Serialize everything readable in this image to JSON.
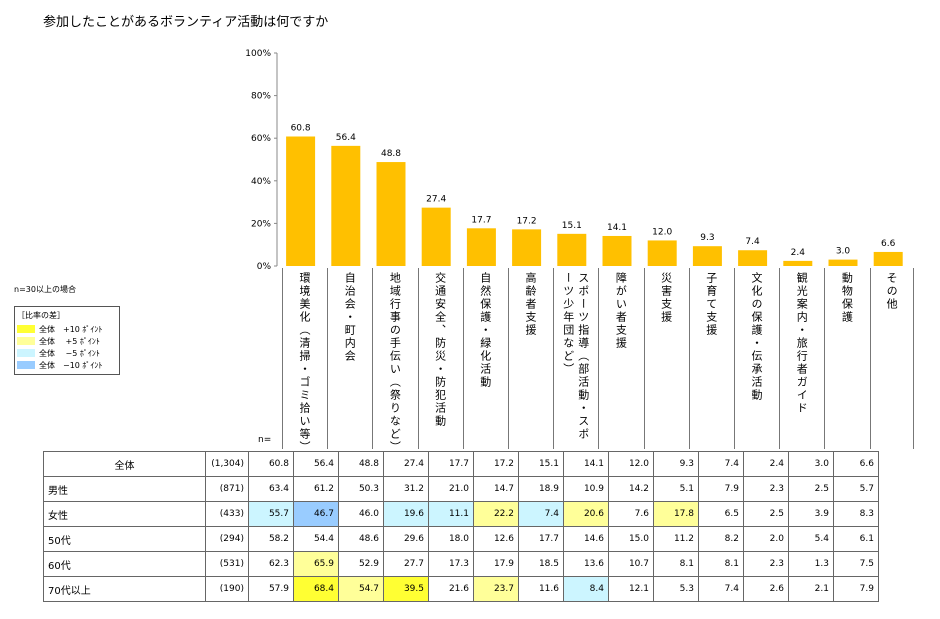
{
  "title": "参加したことがあるボランティア活動は何ですか",
  "colors": {
    "bar": "#FFC000",
    "p10": "#ffff33",
    "p5": "#ffff99",
    "m5": "#ccf5ff",
    "m10": "#99ccff"
  },
  "legend": {
    "note": "n=30以上の場合",
    "heading": "［比率の差］",
    "items": [
      {
        "label": "全体　+10 ﾎﾟｲﾝﾄ",
        "color": "#ffff33"
      },
      {
        "label": "全体　 +5 ﾎﾟｲﾝﾄ",
        "color": "#ffff99"
      },
      {
        "label": "全体　 −5 ﾎﾟｲﾝﾄ",
        "color": "#ccf5ff"
      },
      {
        "label": "全体　−10 ﾎﾟｲﾝﾄ",
        "color": "#99ccff"
      }
    ]
  },
  "n_label": "n=",
  "chart_data": {
    "type": "bar",
    "title": "参加したことがあるボランティア活動は何ですか",
    "categories": [
      "環境美化（清掃・ゴミ拾い等）",
      "自治会・町内会",
      "地域行事の手伝い（祭りなど）",
      "交通安全、防災・防犯活動",
      "自然保護・緑化活動",
      "高齢者支援",
      "スポーツ指導（部活動・スポーツ少年団など）",
      "障がい者支援",
      "災害支援",
      "子育て支援",
      "文化の保護・伝承活動",
      "観光案内・旅行者ガイド",
      "動物保護",
      "その他"
    ],
    "values": [
      60.8,
      56.4,
      48.8,
      27.4,
      17.7,
      17.2,
      15.1,
      14.1,
      12.0,
      9.3,
      7.4,
      2.4,
      3.0,
      6.6
    ],
    "value_labels": [
      "60.8",
      "56.4",
      "48.8",
      "27.4",
      "17.7",
      "17.2",
      "15.1",
      "14.1",
      "12.0",
      "9.3",
      "7.4",
      "2.4",
      "3.0",
      "6.6"
    ],
    "yticks": [
      "0%",
      "20%",
      "40%",
      "60%",
      "80%",
      "100%"
    ],
    "ylim": [
      0,
      100
    ],
    "xlabel": "",
    "ylabel": ""
  },
  "table": {
    "rows": [
      {
        "label": "全体",
        "n": "(1,304)",
        "values": [
          "60.8",
          "56.4",
          "48.8",
          "27.4",
          "17.7",
          "17.2",
          "15.1",
          "14.1",
          "12.0",
          "9.3",
          "7.4",
          "2.4",
          "3.0",
          "6.6"
        ],
        "hl": [
          "",
          "",
          "",
          "",
          "",
          "",
          "",
          "",
          "",
          "",
          "",
          "",
          "",
          ""
        ]
      },
      {
        "label": "男性",
        "n": "(871)",
        "values": [
          "63.4",
          "61.2",
          "50.3",
          "31.2",
          "21.0",
          "14.7",
          "18.9",
          "10.9",
          "14.2",
          "5.1",
          "7.9",
          "2.3",
          "2.5",
          "5.7"
        ],
        "hl": [
          "",
          "",
          "",
          "",
          "",
          "",
          "",
          "",
          "",
          "",
          "",
          "",
          "",
          ""
        ]
      },
      {
        "label": "女性",
        "n": "(433)",
        "values": [
          "55.7",
          "46.7",
          "46.0",
          "19.6",
          "11.1",
          "22.2",
          "7.4",
          "20.6",
          "7.6",
          "17.8",
          "6.5",
          "2.5",
          "3.9",
          "8.3"
        ],
        "hl": [
          "m5",
          "m10",
          "",
          "m5",
          "m5",
          "p5",
          "m5",
          "p5",
          "",
          "p5",
          "",
          "",
          "",
          ""
        ]
      },
      {
        "label": "50代",
        "n": "(294)",
        "values": [
          "58.2",
          "54.4",
          "48.6",
          "29.6",
          "18.0",
          "12.6",
          "17.7",
          "14.6",
          "15.0",
          "11.2",
          "8.2",
          "2.0",
          "5.4",
          "6.1"
        ],
        "hl": [
          "",
          "",
          "",
          "",
          "",
          "",
          "",
          "",
          "",
          "",
          "",
          "",
          "",
          ""
        ]
      },
      {
        "label": "60代",
        "n": "(531)",
        "values": [
          "62.3",
          "65.9",
          "52.9",
          "27.7",
          "17.3",
          "17.9",
          "18.5",
          "13.6",
          "10.7",
          "8.1",
          "8.1",
          "2.3",
          "1.3",
          "7.5"
        ],
        "hl": [
          "",
          "p5",
          "",
          "",
          "",
          "",
          "",
          "",
          "",
          "",
          "",
          "",
          "",
          ""
        ]
      },
      {
        "label": "70代以上",
        "n": "(190)",
        "values": [
          "57.9",
          "68.4",
          "54.7",
          "39.5",
          "21.6",
          "23.7",
          "11.6",
          "8.4",
          "12.1",
          "5.3",
          "7.4",
          "2.6",
          "2.1",
          "7.9"
        ],
        "hl": [
          "",
          "p10",
          "p5",
          "p10",
          "",
          "p5",
          "",
          "m5",
          "",
          "",
          "",
          "",
          "",
          ""
        ]
      }
    ]
  }
}
